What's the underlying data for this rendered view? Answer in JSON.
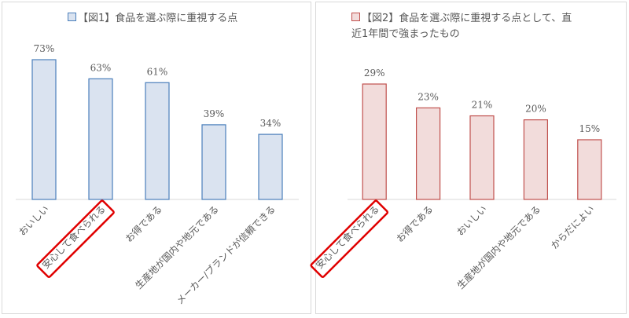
{
  "chart_data": [
    {
      "type": "bar",
      "title": "【図1】食品を選ぶ際に重視する点",
      "categories": [
        "おいしい",
        "安心して食べられる",
        "お得である",
        "生産地が国内や地元である",
        "メーカー/ブランドが信頼できる"
      ],
      "values": [
        73,
        63,
        61,
        39,
        34
      ],
      "value_labels": [
        "73%",
        "63%",
        "61%",
        "39%",
        "34%"
      ],
      "color": "#dae3f0",
      "edge_color": "#4a7ebb",
      "highlight": 1
    },
    {
      "type": "bar",
      "title": "【図2】食品を選ぶ際に重視する点として、直近1年間で強まったもの",
      "categories": [
        "安心して食べられる",
        "お得である",
        "おいしい",
        "生産地が国内や地元である",
        "からだによい"
      ],
      "values": [
        29,
        23,
        21,
        20,
        15
      ],
      "value_labels": [
        "29%",
        "23%",
        "21%",
        "20%",
        "15%"
      ],
      "color": "#f2dcdb",
      "edge_color": "#c0504d",
      "highlight": 0
    }
  ]
}
